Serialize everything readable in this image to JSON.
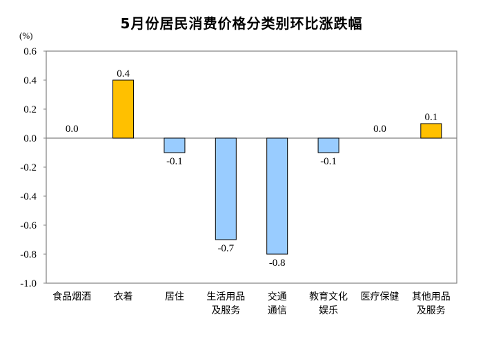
{
  "chart_data": {
    "type": "bar",
    "title": "5月份居民消费价格分类别环比涨跌幅",
    "unit": "(%)",
    "categories": [
      [
        "食品烟酒"
      ],
      [
        "衣着"
      ],
      [
        "居住"
      ],
      [
        "生活用品",
        "及服务"
      ],
      [
        "交通",
        "通信"
      ],
      [
        "教育文化",
        "娱乐"
      ],
      [
        "医疗保健"
      ],
      [
        "其他用品",
        "及服务"
      ]
    ],
    "values": [
      0.0,
      0.4,
      -0.1,
      -0.7,
      -0.8,
      -0.1,
      0.0,
      0.1
    ],
    "value_labels": [
      "0.0",
      "0.4",
      "-0.1",
      "-0.7",
      "-0.8",
      "-0.1",
      "0.0",
      "0.1"
    ],
    "ylim": [
      -1.0,
      0.6
    ],
    "yticks": [
      0.6,
      0.4,
      0.2,
      0.0,
      -0.2,
      -0.4,
      -0.6,
      -0.8,
      -1.0
    ],
    "ytick_labels": [
      "0.6",
      "0.4",
      "0.2",
      "0.0",
      "-0.2",
      "-0.4",
      "-0.6",
      "-0.8",
      "-1.0"
    ],
    "grid": false,
    "colors": {
      "positive": "#FFC000",
      "negative": "#99CCFF",
      "bar_border": "#000000"
    }
  }
}
